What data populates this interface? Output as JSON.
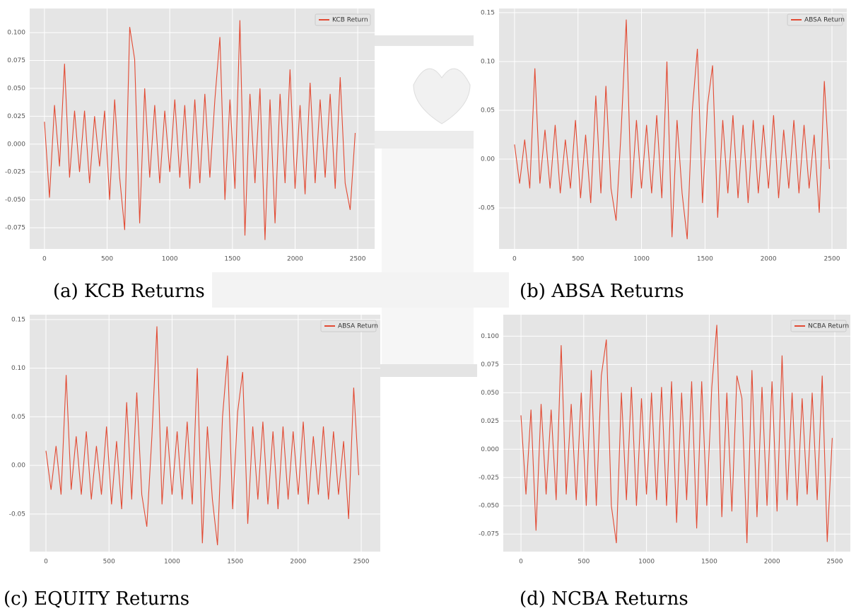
{
  "chart_data": [
    {
      "type": "line",
      "caption": "(a) KCB Returns",
      "x": [
        0,
        40,
        80,
        120,
        160,
        200,
        240,
        280,
        320,
        360,
        400,
        440,
        480,
        520,
        560,
        600,
        640,
        680,
        720,
        760,
        800,
        840,
        880,
        920,
        960,
        1000,
        1040,
        1080,
        1120,
        1160,
        1200,
        1240,
        1280,
        1320,
        1360,
        1400,
        1440,
        1480,
        1520,
        1560,
        1600,
        1640,
        1680,
        1720,
        1760,
        1800,
        1840,
        1880,
        1920,
        1960,
        2000,
        2040,
        2080,
        2120,
        2160,
        2200,
        2240,
        2280,
        2320,
        2360,
        2400,
        2440,
        2480
      ],
      "series": [
        {
          "name": "KCB Return",
          "color": "#E24A33",
          "values": [
            0.02,
            -0.048,
            0.035,
            -0.02,
            0.072,
            -0.03,
            0.03,
            -0.025,
            0.03,
            -0.035,
            0.025,
            -0.02,
            0.03,
            -0.05,
            0.04,
            -0.03,
            -0.077,
            0.105,
            0.076,
            -0.071,
            0.05,
            -0.03,
            0.035,
            -0.035,
            0.03,
            -0.025,
            0.04,
            -0.03,
            0.035,
            -0.04,
            0.04,
            -0.035,
            0.045,
            -0.03,
            0.04,
            0.096,
            -0.05,
            0.04,
            -0.04,
            0.111,
            -0.082,
            0.045,
            -0.035,
            0.05,
            -0.086,
            0.04,
            -0.071,
            0.045,
            -0.035,
            0.067,
            -0.04,
            0.035,
            -0.045,
            0.055,
            -0.035,
            0.04,
            -0.03,
            0.045,
            -0.04,
            0.06,
            -0.035,
            -0.059,
            0.01
          ]
        }
      ],
      "xlim": [
        -118,
        2635
      ],
      "ylim": [
        -0.094,
        0.1216
      ],
      "xticks": [
        0,
        500,
        1000,
        1500,
        2000,
        2500
      ],
      "yticks": [
        -0.075,
        {
          "value": -0.05,
          "label": "-0.050"
        },
        -0.025,
        {
          "value": 0,
          "label": "0.000"
        },
        0.025,
        {
          "value": 0.05,
          "label": "0.050"
        },
        0.075,
        {
          "value": 0.1,
          "label": "0.100"
        }
      ],
      "grid": true,
      "legend": "upper right"
    },
    {
      "type": "line",
      "caption": "(b) ABSA Returns",
      "x": [
        0,
        40,
        80,
        120,
        160,
        200,
        240,
        280,
        320,
        360,
        400,
        440,
        480,
        520,
        560,
        600,
        640,
        680,
        720,
        760,
        800,
        840,
        880,
        920,
        960,
        1000,
        1040,
        1080,
        1120,
        1160,
        1200,
        1240,
        1280,
        1320,
        1360,
        1400,
        1440,
        1480,
        1520,
        1560,
        1600,
        1640,
        1680,
        1720,
        1760,
        1800,
        1840,
        1880,
        1920,
        1960,
        2000,
        2040,
        2080,
        2120,
        2160,
        2200,
        2240,
        2280,
        2320,
        2360,
        2400,
        2440,
        2480
      ],
      "series": [
        {
          "name": "ABSA Return",
          "color": "#E24A33",
          "values": [
            0.015,
            -0.025,
            0.02,
            -0.03,
            0.093,
            -0.025,
            0.03,
            -0.03,
            0.035,
            -0.035,
            0.02,
            -0.03,
            0.04,
            -0.04,
            0.025,
            -0.045,
            0.065,
            -0.035,
            0.075,
            -0.03,
            -0.063,
            0.03,
            0.143,
            -0.04,
            0.04,
            -0.03,
            0.035,
            -0.035,
            0.045,
            -0.04,
            0.1,
            -0.08,
            0.04,
            -0.035,
            -0.082,
            0.05,
            0.113,
            -0.045,
            0.055,
            0.096,
            -0.06,
            0.04,
            -0.035,
            0.045,
            -0.04,
            0.035,
            -0.045,
            0.04,
            -0.035,
            0.035,
            -0.03,
            0.045,
            -0.04,
            0.03,
            -0.03,
            0.04,
            -0.035,
            0.035,
            -0.03,
            0.025,
            -0.055,
            0.08,
            -0.01
          ]
        }
      ],
      "xlim": [
        -122,
        2617
      ],
      "ylim": [
        -0.092,
        0.1543
      ],
      "xticks": [
        0,
        500,
        1000,
        1500,
        2000,
        2500
      ],
      "yticks": [
        -0.05,
        {
          "value": 0,
          "label": "0.00"
        },
        0.05,
        {
          "value": 0.1,
          "label": "0.10"
        },
        0.15
      ],
      "grid": true,
      "legend": "upper right"
    },
    {
      "type": "line",
      "caption": "(c) EQUITY Returns",
      "x": [
        0,
        40,
        80,
        120,
        160,
        200,
        240,
        280,
        320,
        360,
        400,
        440,
        480,
        520,
        560,
        600,
        640,
        680,
        720,
        760,
        800,
        840,
        880,
        920,
        960,
        1000,
        1040,
        1080,
        1120,
        1160,
        1200,
        1240,
        1280,
        1320,
        1360,
        1400,
        1440,
        1480,
        1520,
        1560,
        1600,
        1640,
        1680,
        1720,
        1760,
        1800,
        1840,
        1880,
        1920,
        1960,
        2000,
        2040,
        2080,
        2120,
        2160,
        2200,
        2240,
        2280,
        2320,
        2360,
        2400,
        2440,
        2480
      ],
      "series": [
        {
          "name": "ABSA Return",
          "color": "#E24A33",
          "values": [
            0.015,
            -0.025,
            0.02,
            -0.03,
            0.093,
            -0.025,
            0.03,
            -0.03,
            0.035,
            -0.035,
            0.02,
            -0.03,
            0.04,
            -0.04,
            0.025,
            -0.045,
            0.065,
            -0.035,
            0.075,
            -0.03,
            -0.063,
            0.03,
            0.143,
            -0.04,
            0.04,
            -0.03,
            0.035,
            -0.035,
            0.045,
            -0.04,
            0.1,
            -0.08,
            0.04,
            -0.035,
            -0.082,
            0.05,
            0.113,
            -0.045,
            0.055,
            0.096,
            -0.06,
            0.04,
            -0.035,
            0.045,
            -0.04,
            0.035,
            -0.045,
            0.04,
            -0.035,
            0.035,
            -0.03,
            0.045,
            -0.04,
            0.03,
            -0.03,
            0.04,
            -0.035,
            0.035,
            -0.03,
            0.025,
            -0.055,
            0.08,
            -0.01
          ]
        }
      ],
      "xlim": [
        -129,
        2651
      ],
      "ylim": [
        -0.0886,
        0.155
      ],
      "xticks": [
        0,
        500,
        1000,
        1500,
        2000,
        2500
      ],
      "yticks": [
        -0.05,
        {
          "value": 0,
          "label": "0.00"
        },
        0.05,
        {
          "value": 0.1,
          "label": "0.10"
        },
        0.15
      ],
      "grid": true,
      "legend": "upper right"
    },
    {
      "type": "line",
      "caption": "(d) NCBA Returns",
      "x": [
        0,
        40,
        80,
        120,
        160,
        200,
        240,
        280,
        320,
        360,
        400,
        440,
        480,
        520,
        560,
        600,
        640,
        680,
        720,
        760,
        800,
        840,
        880,
        920,
        960,
        1000,
        1040,
        1080,
        1120,
        1160,
        1200,
        1240,
        1280,
        1320,
        1360,
        1400,
        1440,
        1480,
        1520,
        1560,
        1600,
        1640,
        1680,
        1720,
        1760,
        1800,
        1840,
        1880,
        1920,
        1960,
        2000,
        2040,
        2080,
        2120,
        2160,
        2200,
        2240,
        2280,
        2320,
        2360,
        2400,
        2440,
        2480
      ],
      "series": [
        {
          "name": "NCBA Return",
          "color": "#E24A33",
          "values": [
            0.03,
            -0.04,
            0.035,
            -0.072,
            0.04,
            -0.04,
            0.035,
            -0.045,
            0.092,
            -0.04,
            0.04,
            -0.045,
            0.05,
            -0.05,
            0.07,
            -0.05,
            0.065,
            0.097,
            -0.05,
            -0.083,
            0.05,
            -0.045,
            0.055,
            -0.05,
            0.045,
            -0.04,
            0.05,
            -0.045,
            0.055,
            -0.05,
            0.06,
            -0.065,
            0.05,
            -0.045,
            0.06,
            -0.07,
            0.06,
            -0.05,
            0.055,
            0.11,
            -0.06,
            0.05,
            -0.055,
            0.065,
            0.045,
            -0.083,
            0.07,
            -0.06,
            0.055,
            -0.05,
            0.06,
            -0.055,
            0.083,
            -0.045,
            0.05,
            -0.05,
            0.045,
            -0.04,
            0.05,
            -0.045,
            0.065,
            -0.082,
            0.01
          ]
        }
      ],
      "xlim": [
        -141,
        2624
      ],
      "ylim": [
        -0.0905,
        0.119
      ],
      "xticks": [
        0,
        500,
        1000,
        1500,
        2000,
        2500
      ],
      "yticks": [
        -0.075,
        {
          "value": -0.05,
          "label": "-0.050"
        },
        -0.025,
        {
          "value": 0,
          "label": "0.000"
        },
        0.025,
        {
          "value": 0.05,
          "label": "0.050"
        },
        0.075,
        {
          "value": 0.1,
          "label": "0.100"
        }
      ],
      "grid": true,
      "legend": "upper right"
    }
  ]
}
